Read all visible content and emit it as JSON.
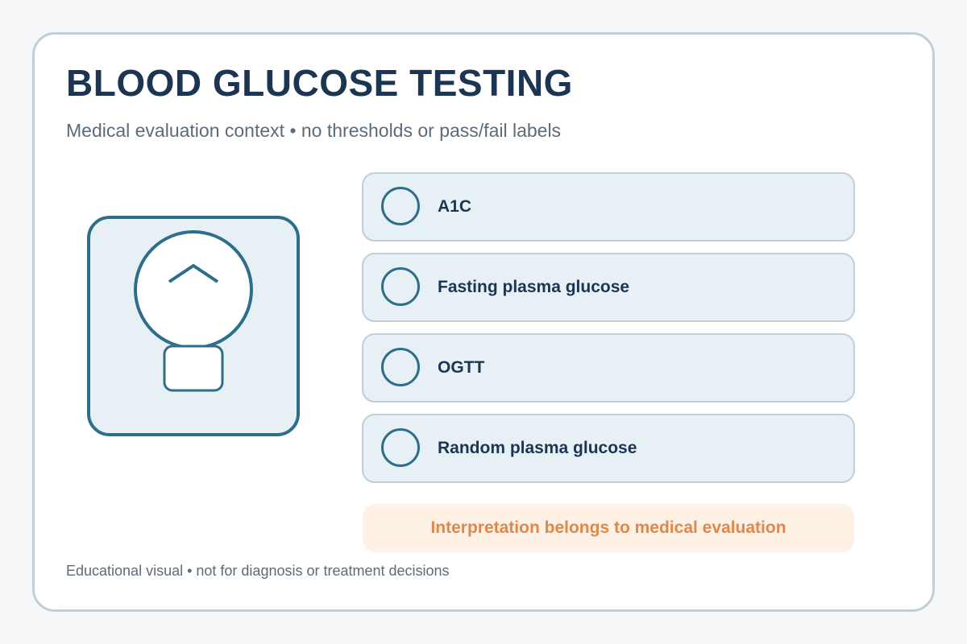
{
  "header": {
    "title": "BLOOD GLUCOSE TESTING",
    "subtitle": "Medical evaluation context • no thresholds or pass/fail labels"
  },
  "illustration": {
    "icon": "glucose-meter-icon"
  },
  "tests": [
    {
      "label": "A1C"
    },
    {
      "label": "Fasting plasma glucose"
    },
    {
      "label": "OGTT"
    },
    {
      "label": "Random plasma glucose"
    }
  ],
  "note": {
    "text": "Interpretation belongs to medical evaluation"
  },
  "footer": {
    "disclaimer": "Educational visual • not for diagnosis or treatment decisions"
  },
  "colors": {
    "title": "#1c3552",
    "accent": "#2d6e8a",
    "panel_fill": "#e7f1f5",
    "border": "#bfcfd9",
    "note_bg": "#fdf1e5",
    "note_text": "#e0874a",
    "muted_text": "#5b6b7a"
  }
}
